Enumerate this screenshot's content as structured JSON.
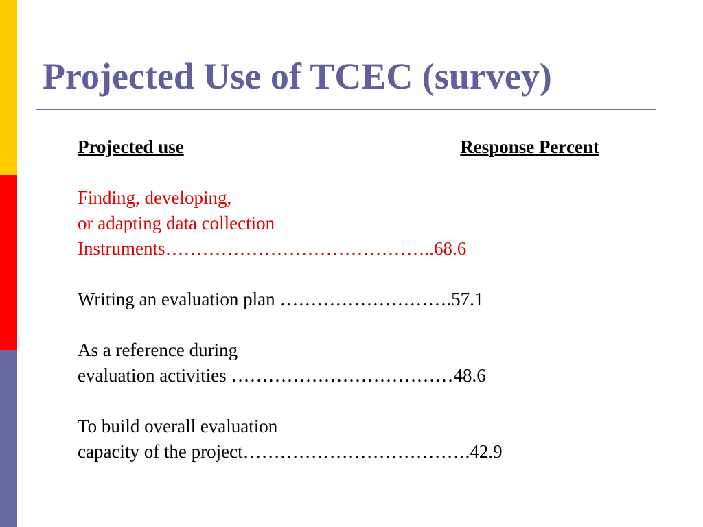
{
  "title": "Projected Use of TCEC (survey)",
  "header": {
    "left": "Projected use",
    "right": "Response Percent"
  },
  "items": [
    {
      "color": "#e00000",
      "lines": [
        "Finding, developing,",
        "or adapting data collection"
      ],
      "last": "Instruments",
      "leader": "……………………………………..",
      "value": 68.6
    },
    {
      "color": "#000000",
      "lines": [],
      "last": "Writing an evaluation plan ",
      "leader": "……………………….",
      "value": 57.1
    },
    {
      "color": "#000000",
      "lines": [
        "As a reference during"
      ],
      "last": "evaluation activities ",
      "leader": "………………………………",
      "value": 48.6
    },
    {
      "color": "#000000",
      "lines": [
        "To build overall evaluation"
      ],
      "last": "capacity of the project",
      "leader": "……………………………….",
      "value": 42.9
    }
  ]
}
